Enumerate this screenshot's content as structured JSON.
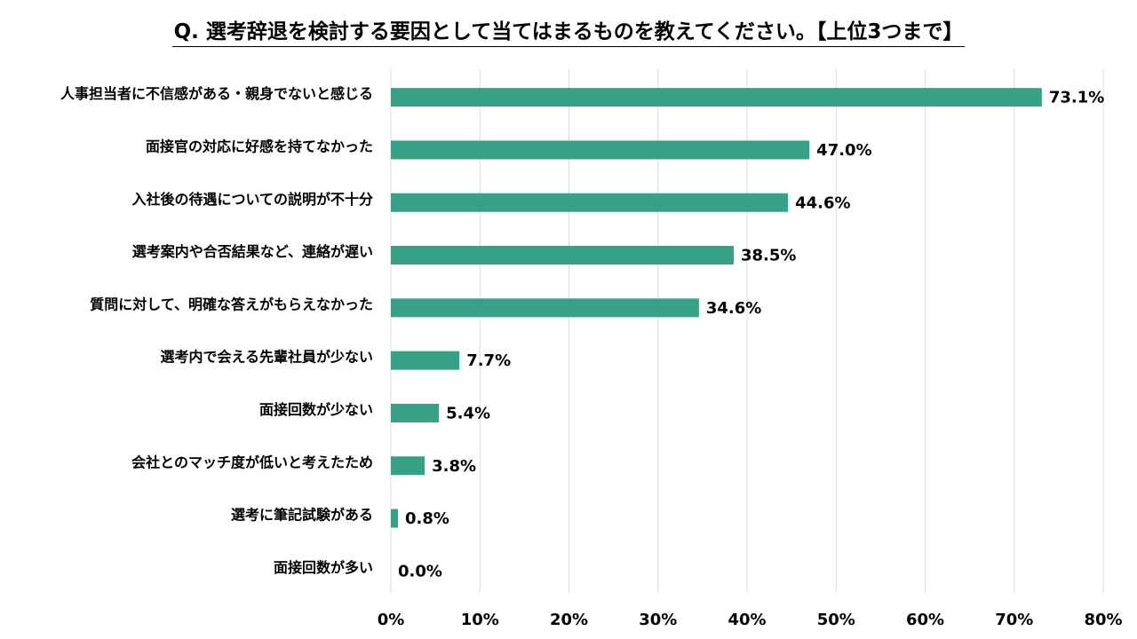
{
  "title": "Q. 選考辞退を検討する要因として当てはまるものを教えてください。【上位3つまで】",
  "colors": {
    "bar": "#38a085",
    "grid": "#d9d9d9"
  },
  "chart_data": {
    "type": "bar",
    "orientation": "horizontal",
    "title": "Q. 選考辞退を検討する要因として当てはまるものを教えてください。【上位3つまで】",
    "categories": [
      "人事担当者に不信感がある・親身でないと感じる",
      "面接官の対応に好感を持てなかった",
      "入社後の待遇についての説明が不十分",
      "選考案内や合否結果など、連絡が遅い",
      "質問に対して、明確な答えがもらえなかった",
      "選考内で会える先輩社員が少ない",
      "面接回数が少ない",
      "会社とのマッチ度が低いと考えたため",
      "選考に筆記試験がある",
      "面接回数が多い"
    ],
    "values": [
      73.1,
      47.0,
      44.6,
      38.5,
      34.6,
      7.7,
      5.4,
      3.8,
      0.8,
      0.0
    ],
    "value_labels": [
      "73.1%",
      "47.0%",
      "44.6%",
      "38.5%",
      "34.6%",
      "7.7%",
      "5.4%",
      "3.8%",
      "0.8%",
      "0.0%"
    ],
    "xlim": [
      0,
      80
    ],
    "ticks": [
      0,
      10,
      20,
      30,
      40,
      50,
      60,
      70,
      80
    ],
    "tick_labels": [
      "0%",
      "10%",
      "20%",
      "30%",
      "40%",
      "50%",
      "60%",
      "70%",
      "80%"
    ],
    "grid": true,
    "legend": "none"
  }
}
